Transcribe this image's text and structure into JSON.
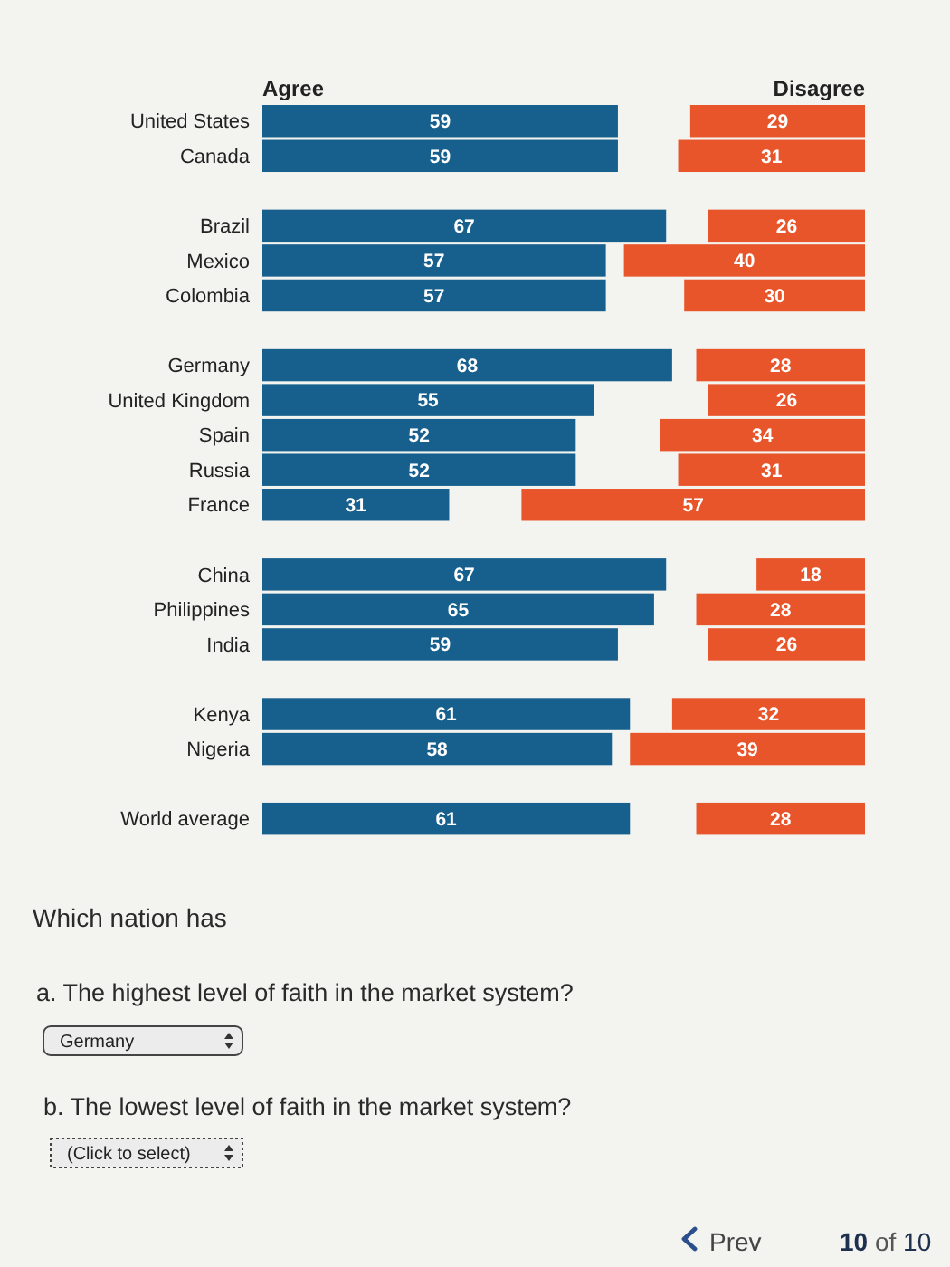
{
  "chart_data": [
    {
      "type": "bar",
      "orientation": "horizontal",
      "categories": [
        "United States",
        "Canada",
        null,
        "Brazil",
        "Mexico",
        "Colombia",
        null,
        "Germany",
        "United Kingdom",
        "Spain",
        "Russia",
        "France",
        null,
        "China",
        "Philippines",
        "India",
        null,
        "Kenya",
        "Nigeria",
        null,
        "World average"
      ],
      "series": [
        {
          "name": "Agree",
          "color": "#17608e",
          "values": [
            59,
            59,
            null,
            67,
            57,
            57,
            null,
            68,
            55,
            52,
            52,
            31,
            null,
            67,
            65,
            59,
            null,
            61,
            58,
            null,
            61
          ]
        }
      ],
      "xlim": [
        0,
        68
      ],
      "data_labels": true,
      "annotations": [
        "Which nation has",
        "a. The highest level of faith in the market system?",
        "Germany",
        "b. The lowest level of faith in the market system?",
        "(Click to select)",
        "Prev",
        "10 of 10"
      ]
    },
    {
      "type": "bar",
      "orientation": "horizontal",
      "categories": [
        null,
        null,
        null,
        null,
        null,
        null,
        null,
        null,
        null,
        null,
        null,
        null,
        null,
        null,
        null,
        null,
        null,
        null,
        null,
        null,
        null
      ],
      "series": [
        {
          "name": "Disagree",
          "color": "#e9552b",
          "values": [
            29,
            31,
            null,
            26,
            40,
            30,
            null,
            28,
            26,
            34,
            31,
            57,
            null,
            18,
            28,
            26,
            null,
            32,
            39,
            null,
            28
          ]
        }
      ],
      "xlim": [
        57,
        0
      ],
      "data_labels": true
    }
  ]
}
